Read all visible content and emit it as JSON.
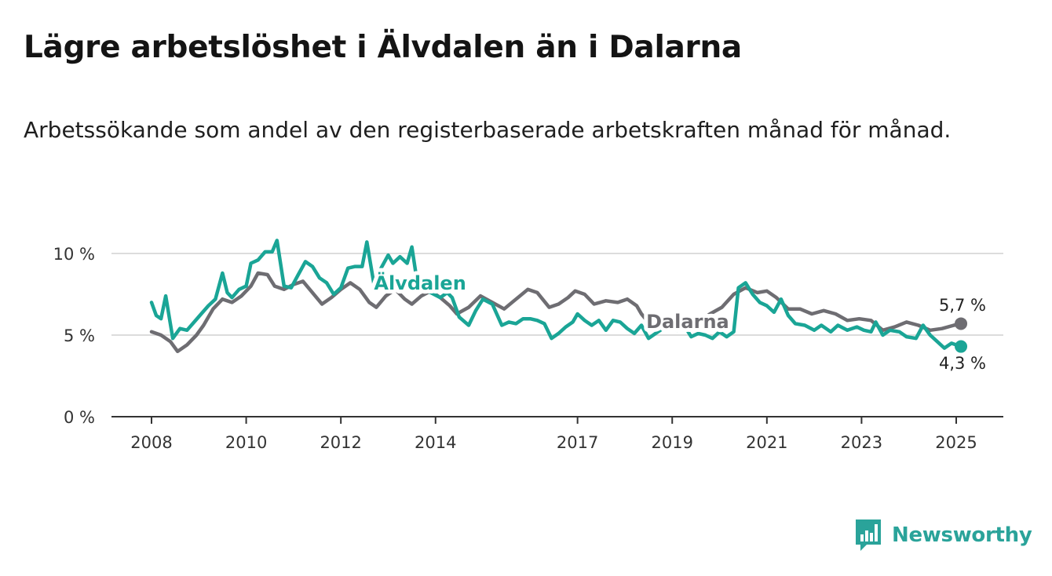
{
  "title": "Lägre arbetslöshet i Älvdalen än i Dalarna",
  "subtitle": "Arbetssökande som andel av den registerbaserade arbetskraften månad för månad.",
  "brand": {
    "name": "Newsworthy",
    "icon": "newsworthy-logo-icon"
  },
  "colors": {
    "alvdalen": "#1aa596",
    "dalarna": "#6e6d72",
    "grid": "#dcdcdc",
    "axis": "#333333"
  },
  "chart_data": {
    "type": "line",
    "xlim": [
      2008,
      2025.3
    ],
    "ylim": [
      0,
      10
    ],
    "x_ticks": [
      {
        "value": 2008,
        "label": "2008"
      },
      {
        "value": 2010,
        "label": "2010"
      },
      {
        "value": 2012,
        "label": "2012"
      },
      {
        "value": 2014,
        "label": "2014"
      },
      {
        "value": 2017,
        "label": "2017"
      },
      {
        "value": 2019,
        "label": "2019"
      },
      {
        "value": 2021,
        "label": "2021"
      },
      {
        "value": 2023,
        "label": "2023"
      },
      {
        "value": 2025,
        "label": "2025"
      }
    ],
    "y_ticks": [
      {
        "value": 0,
        "label": "0 %"
      },
      {
        "value": 5,
        "label": "5 %"
      },
      {
        "value": 10,
        "label": "10 %"
      }
    ],
    "grid": true,
    "legend": "inline labels",
    "series": [
      {
        "name": "Dalarna",
        "color_key": "dalarna",
        "end_label": "5,7 %",
        "points": [
          [
            2008.0,
            5.2
          ],
          [
            2008.2,
            5.0
          ],
          [
            2008.4,
            4.6
          ],
          [
            2008.55,
            4.0
          ],
          [
            2008.75,
            4.4
          ],
          [
            2008.95,
            5.0
          ],
          [
            2009.1,
            5.6
          ],
          [
            2009.3,
            6.6
          ],
          [
            2009.5,
            7.2
          ],
          [
            2009.7,
            7.0
          ],
          [
            2009.9,
            7.4
          ],
          [
            2010.1,
            8.0
          ],
          [
            2010.25,
            8.8
          ],
          [
            2010.45,
            8.7
          ],
          [
            2010.6,
            8.0
          ],
          [
            2010.8,
            7.8
          ],
          [
            2011.0,
            8.1
          ],
          [
            2011.2,
            8.3
          ],
          [
            2011.4,
            7.6
          ],
          [
            2011.6,
            6.9
          ],
          [
            2011.8,
            7.3
          ],
          [
            2012.0,
            7.8
          ],
          [
            2012.2,
            8.2
          ],
          [
            2012.4,
            7.8
          ],
          [
            2012.6,
            7.0
          ],
          [
            2012.75,
            6.7
          ],
          [
            2012.95,
            7.4
          ],
          [
            2013.15,
            7.8
          ],
          [
            2013.35,
            7.2
          ],
          [
            2013.5,
            6.9
          ],
          [
            2013.7,
            7.4
          ],
          [
            2013.9,
            7.7
          ],
          [
            2014.1,
            7.3
          ],
          [
            2014.3,
            6.8
          ],
          [
            2014.45,
            6.3
          ],
          [
            2014.7,
            6.7
          ],
          [
            2014.95,
            7.4
          ],
          [
            2015.2,
            7.0
          ],
          [
            2015.45,
            6.6
          ],
          [
            2015.7,
            7.2
          ],
          [
            2015.95,
            7.8
          ],
          [
            2016.15,
            7.6
          ],
          [
            2016.4,
            6.7
          ],
          [
            2016.6,
            6.9
          ],
          [
            2016.8,
            7.3
          ],
          [
            2016.95,
            7.7
          ],
          [
            2017.15,
            7.5
          ],
          [
            2017.35,
            6.9
          ],
          [
            2017.6,
            7.1
          ],
          [
            2017.85,
            7.0
          ],
          [
            2018.05,
            7.2
          ],
          [
            2018.25,
            6.8
          ],
          [
            2018.35,
            6.3
          ],
          [
            2018.55,
            5.6
          ],
          [
            2018.8,
            5.4
          ],
          [
            2019.05,
            5.6
          ],
          [
            2019.3,
            5.4
          ],
          [
            2019.55,
            5.8
          ],
          [
            2019.8,
            6.3
          ],
          [
            2020.05,
            6.7
          ],
          [
            2020.3,
            7.5
          ],
          [
            2020.55,
            7.9
          ],
          [
            2020.8,
            7.6
          ],
          [
            2021.0,
            7.7
          ],
          [
            2021.2,
            7.3
          ],
          [
            2021.45,
            6.6
          ],
          [
            2021.7,
            6.6
          ],
          [
            2021.95,
            6.3
          ],
          [
            2022.2,
            6.5
          ],
          [
            2022.45,
            6.3
          ],
          [
            2022.7,
            5.9
          ],
          [
            2022.95,
            6.0
          ],
          [
            2023.2,
            5.9
          ],
          [
            2023.45,
            5.3
          ],
          [
            2023.7,
            5.5
          ],
          [
            2023.95,
            5.8
          ],
          [
            2024.2,
            5.6
          ],
          [
            2024.45,
            5.3
          ],
          [
            2024.7,
            5.4
          ],
          [
            2024.95,
            5.6
          ],
          [
            2025.1,
            5.7
          ]
        ]
      },
      {
        "name": "Älvdalen",
        "color_key": "alvdalen",
        "end_label": "4,3 %",
        "points": [
          [
            2008.0,
            7.0
          ],
          [
            2008.1,
            6.2
          ],
          [
            2008.2,
            6.0
          ],
          [
            2008.3,
            7.4
          ],
          [
            2008.45,
            4.8
          ],
          [
            2008.6,
            5.4
          ],
          [
            2008.75,
            5.3
          ],
          [
            2008.9,
            5.8
          ],
          [
            2009.05,
            6.3
          ],
          [
            2009.2,
            6.8
          ],
          [
            2009.35,
            7.2
          ],
          [
            2009.5,
            8.8
          ],
          [
            2009.6,
            7.6
          ],
          [
            2009.7,
            7.3
          ],
          [
            2009.85,
            7.8
          ],
          [
            2010.0,
            8.0
          ],
          [
            2010.1,
            9.4
          ],
          [
            2010.25,
            9.6
          ],
          [
            2010.4,
            10.1
          ],
          [
            2010.55,
            10.1
          ],
          [
            2010.65,
            10.8
          ],
          [
            2010.8,
            8.0
          ],
          [
            2010.95,
            7.9
          ],
          [
            2011.1,
            8.7
          ],
          [
            2011.25,
            9.5
          ],
          [
            2011.4,
            9.2
          ],
          [
            2011.55,
            8.5
          ],
          [
            2011.7,
            8.2
          ],
          [
            2011.85,
            7.5
          ],
          [
            2012.0,
            7.9
          ],
          [
            2012.15,
            9.1
          ],
          [
            2012.3,
            9.2
          ],
          [
            2012.45,
            9.2
          ],
          [
            2012.55,
            10.7
          ],
          [
            2012.7,
            8.1
          ],
          [
            2012.85,
            9.1
          ],
          [
            2013.0,
            9.9
          ],
          [
            2013.1,
            9.4
          ],
          [
            2013.25,
            9.8
          ],
          [
            2013.4,
            9.4
          ],
          [
            2013.5,
            10.4
          ],
          [
            2013.6,
            8.5
          ],
          [
            2013.75,
            7.8
          ],
          [
            2013.9,
            7.6
          ],
          [
            2014.1,
            7.3
          ],
          [
            2014.25,
            7.6
          ],
          [
            2014.35,
            7.3
          ],
          [
            2014.5,
            6.1
          ],
          [
            2014.7,
            5.6
          ],
          [
            2014.85,
            6.5
          ],
          [
            2015.0,
            7.2
          ],
          [
            2015.2,
            6.9
          ],
          [
            2015.4,
            5.6
          ],
          [
            2015.55,
            5.8
          ],
          [
            2015.7,
            5.7
          ],
          [
            2015.85,
            6.0
          ],
          [
            2016.0,
            6.0
          ],
          [
            2016.15,
            5.9
          ],
          [
            2016.3,
            5.7
          ],
          [
            2016.45,
            4.8
          ],
          [
            2016.6,
            5.1
          ],
          [
            2016.75,
            5.5
          ],
          [
            2016.9,
            5.8
          ],
          [
            2017.0,
            6.3
          ],
          [
            2017.15,
            5.9
          ],
          [
            2017.3,
            5.6
          ],
          [
            2017.45,
            5.9
          ],
          [
            2017.6,
            5.3
          ],
          [
            2017.75,
            5.9
          ],
          [
            2017.9,
            5.8
          ],
          [
            2018.05,
            5.4
          ],
          [
            2018.2,
            5.1
          ],
          [
            2018.35,
            5.6
          ],
          [
            2018.5,
            4.8
          ],
          [
            2018.65,
            5.1
          ],
          [
            2018.8,
            5.4
          ],
          [
            2018.95,
            5.5
          ],
          [
            2019.1,
            5.3
          ],
          [
            2019.25,
            5.6
          ],
          [
            2019.4,
            4.9
          ],
          [
            2019.55,
            5.1
          ],
          [
            2019.7,
            5.0
          ],
          [
            2019.85,
            4.8
          ],
          [
            2020.0,
            5.2
          ],
          [
            2020.15,
            4.9
          ],
          [
            2020.3,
            5.2
          ],
          [
            2020.4,
            7.9
          ],
          [
            2020.55,
            8.2
          ],
          [
            2020.7,
            7.5
          ],
          [
            2020.85,
            7.0
          ],
          [
            2021.0,
            6.8
          ],
          [
            2021.15,
            6.4
          ],
          [
            2021.3,
            7.2
          ],
          [
            2021.45,
            6.2
          ],
          [
            2021.6,
            5.7
          ],
          [
            2021.8,
            5.6
          ],
          [
            2022.0,
            5.3
          ],
          [
            2022.15,
            5.6
          ],
          [
            2022.35,
            5.2
          ],
          [
            2022.5,
            5.6
          ],
          [
            2022.7,
            5.3
          ],
          [
            2022.9,
            5.5
          ],
          [
            2023.05,
            5.3
          ],
          [
            2023.2,
            5.2
          ],
          [
            2023.3,
            5.8
          ],
          [
            2023.45,
            5.0
          ],
          [
            2023.6,
            5.3
          ],
          [
            2023.8,
            5.2
          ],
          [
            2023.95,
            4.9
          ],
          [
            2024.15,
            4.8
          ],
          [
            2024.3,
            5.6
          ],
          [
            2024.45,
            5.0
          ],
          [
            2024.6,
            4.6
          ],
          [
            2024.75,
            4.2
          ],
          [
            2024.9,
            4.5
          ],
          [
            2025.0,
            4.4
          ],
          [
            2025.1,
            4.3
          ]
        ]
      }
    ]
  }
}
